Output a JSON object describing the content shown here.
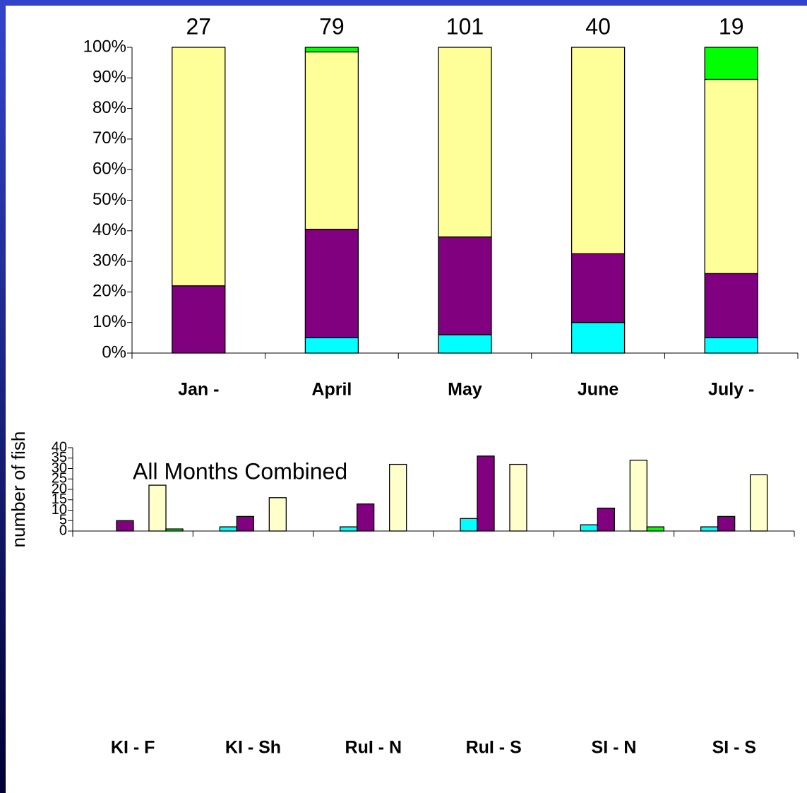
{
  "chart_data": [
    {
      "type": "stacked_bar",
      "categories": [
        "Jan -",
        "April",
        "May",
        "June",
        "July -"
      ],
      "counts": [
        27,
        79,
        101,
        40,
        19
      ],
      "series": [
        {
          "color": "#00ffff",
          "values": [
            0,
            5,
            6,
            10,
            5
          ]
        },
        {
          "color": "#800080",
          "values": [
            22,
            35.5,
            32,
            22.5,
            21
          ]
        },
        {
          "color": "#ffff99",
          "values": [
            78,
            58,
            62,
            67.5,
            63.5
          ]
        },
        {
          "color": "#00ff00",
          "values": [
            0,
            1.5,
            0,
            0,
            10.5
          ]
        }
      ],
      "ylim": [
        0,
        100
      ],
      "yticks": [
        {
          "value": 0,
          "label": "0%"
        },
        {
          "value": 10,
          "label": "10%"
        },
        {
          "value": 20,
          "label": "20%"
        },
        {
          "value": 30,
          "label": "30%"
        },
        {
          "value": 40,
          "label": "40%"
        },
        {
          "value": 50,
          "label": "50%"
        },
        {
          "value": 60,
          "label": "60%"
        },
        {
          "value": 70,
          "label": "70%"
        },
        {
          "value": 80,
          "label": "80%"
        },
        {
          "value": 90,
          "label": "90%"
        },
        {
          "value": 100,
          "label": "100%"
        }
      ],
      "grid": false
    },
    {
      "type": "grouped_bar",
      "annotation": "All Months Combined",
      "y_label": "number of fish",
      "categories": [
        "KI - F",
        "KI - Sh",
        "RuI - N",
        "RuI - S",
        "SI - N",
        "SI - S"
      ],
      "series": [
        {
          "color": "#00ffff",
          "values": [
            0,
            2,
            2,
            6,
            3,
            2
          ]
        },
        {
          "color": "#800080",
          "values": [
            5,
            7,
            13,
            36,
            11,
            7
          ]
        },
        {
          "color": "#ffffcc",
          "values": [
            22,
            16,
            32,
            32,
            34,
            27
          ]
        },
        {
          "color": "#00ff00",
          "values": [
            1,
            0,
            0,
            0,
            2,
            0
          ]
        }
      ],
      "ylim": [
        0,
        40
      ],
      "yticks": [
        0,
        5,
        10,
        15,
        20,
        25,
        30,
        35,
        40
      ],
      "grid": false
    }
  ]
}
